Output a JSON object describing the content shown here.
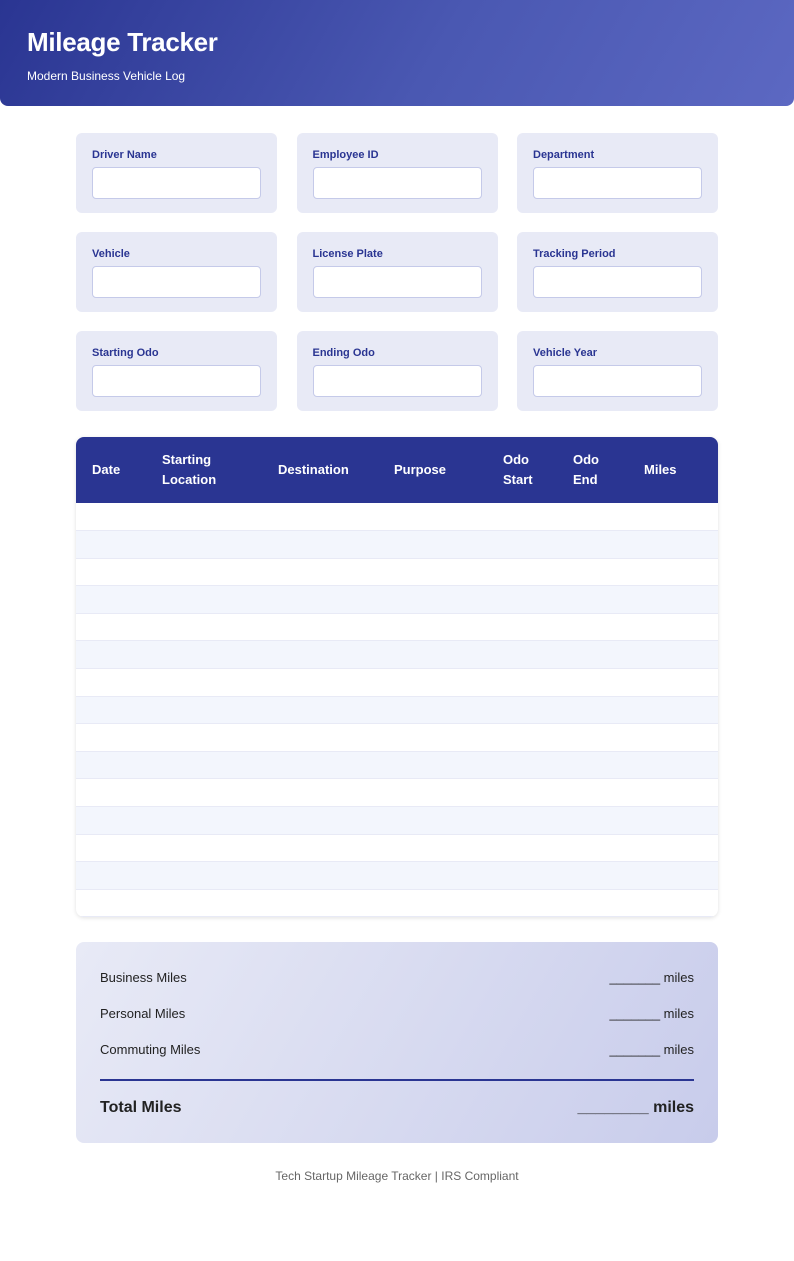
{
  "header": {
    "title": "Mileage Tracker",
    "subtitle": "Modern Business Vehicle Log"
  },
  "fields": [
    {
      "label": "Driver Name",
      "value": ""
    },
    {
      "label": "Employee ID",
      "value": ""
    },
    {
      "label": "Department",
      "value": ""
    },
    {
      "label": "Vehicle",
      "value": ""
    },
    {
      "label": "License Plate",
      "value": ""
    },
    {
      "label": "Tracking Period",
      "value": ""
    },
    {
      "label": "Starting Odo",
      "value": ""
    },
    {
      "label": "Ending Odo",
      "value": ""
    },
    {
      "label": "Vehicle Year",
      "value": ""
    }
  ],
  "table": {
    "columns": [
      "Date",
      "Starting Location",
      "Destination",
      "Purpose",
      "Odo Start",
      "Odo End",
      "Miles"
    ],
    "row_count": 15
  },
  "summary": {
    "rows": [
      {
        "label": "Business Miles",
        "value": "_______ miles"
      },
      {
        "label": "Personal Miles",
        "value": "_______ miles"
      },
      {
        "label": "Commuting Miles",
        "value": "_______ miles"
      }
    ],
    "total_label": "Total Miles",
    "total_value": "________ miles"
  },
  "footer": "Tech Startup Mileage Tracker | IRS Compliant",
  "colors": {
    "primary": "#2a3592",
    "card_bg": "#e8eaf6",
    "row_alt": "#f3f6fd"
  }
}
